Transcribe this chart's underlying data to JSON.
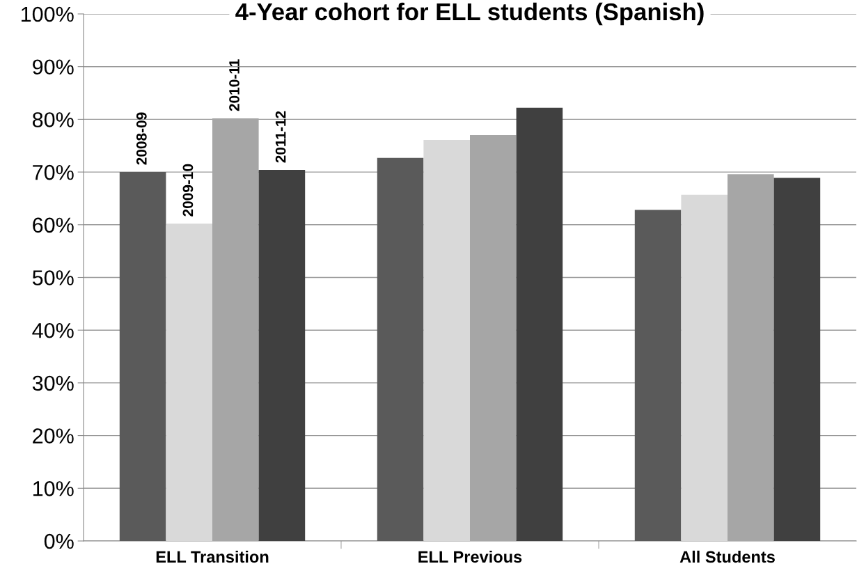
{
  "chart_data": {
    "type": "bar",
    "title": "4-Year cohort for ELL students (Spanish)",
    "categories": [
      "ELL Transition",
      "ELL Previous",
      "All Students"
    ],
    "series": [
      {
        "name": "2008-09",
        "color": "#5a5a5a",
        "values": [
          70.0,
          72.7,
          62.8
        ]
      },
      {
        "name": "2009-10",
        "color": "#d9d9d9",
        "values": [
          60.2,
          76.1,
          65.7
        ]
      },
      {
        "name": "2010-11",
        "color": "#a6a6a6",
        "values": [
          80.2,
          77.0,
          69.6
        ]
      },
      {
        "name": "2011-12",
        "color": "#404040",
        "values": [
          70.4,
          82.2,
          68.9
        ]
      }
    ],
    "ylim": [
      0,
      100
    ],
    "yticks": [
      {
        "value": 0,
        "label": "0%"
      },
      {
        "value": 10,
        "label": "10%"
      },
      {
        "value": 20,
        "label": "20%"
      },
      {
        "value": 30,
        "label": "30%"
      },
      {
        "value": 40,
        "label": "40%"
      },
      {
        "value": 50,
        "label": "50%"
      },
      {
        "value": 60,
        "label": "60%"
      },
      {
        "value": 70,
        "label": "70%"
      },
      {
        "value": 80,
        "label": "80%"
      },
      {
        "value": 90,
        "label": "90%"
      },
      {
        "value": 100,
        "label": "100%"
      }
    ],
    "grid": "y",
    "legend": false
  }
}
